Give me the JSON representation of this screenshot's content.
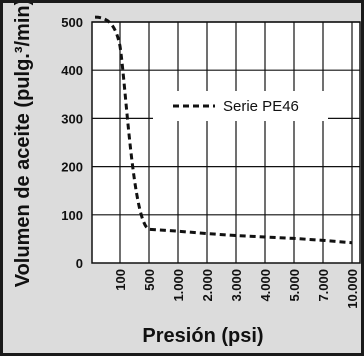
{
  "chart_data": {
    "type": "line",
    "title": "",
    "xlabel": "Presión (psi)",
    "ylabel": "Volumen de aceite (pulg.³/min)",
    "x_ticks": [
      "100",
      "500",
      "1.000",
      "2.000",
      "3.000",
      "4.000",
      "5.000",
      "7.000",
      "10.000"
    ],
    "y_ticks": [
      "0",
      "100",
      "200",
      "300",
      "400",
      "500"
    ],
    "ylim": [
      0,
      500
    ],
    "grid": true,
    "legend_position": "center-right",
    "series": [
      {
        "name": "Serie PE46",
        "style": "dashed",
        "color": "#111111",
        "x": [
          "0",
          "100",
          "500",
          "1.000",
          "2.000",
          "3.000",
          "4.000",
          "5.000",
          "7.000",
          "10.000"
        ],
        "values": [
          510,
          450,
          70,
          66,
          61,
          57,
          54,
          51,
          47,
          42
        ]
      }
    ]
  }
}
